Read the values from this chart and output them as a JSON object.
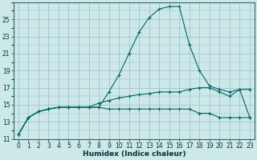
{
  "xlabel": "Humidex (Indice chaleur)",
  "bg_color": "#cce8e8",
  "grid_color": "#99bbcc",
  "line_color": "#006666",
  "x": [
    0,
    1,
    2,
    3,
    4,
    5,
    6,
    7,
    8,
    9,
    10,
    11,
    12,
    13,
    14,
    15,
    16,
    17,
    18,
    19,
    20,
    21,
    22,
    23
  ],
  "y_max": [
    11.5,
    13.5,
    14.2,
    14.5,
    14.7,
    14.7,
    14.7,
    14.7,
    14.7,
    16.5,
    18.5,
    21.0,
    23.5,
    25.2,
    26.2,
    26.5,
    26.5,
    22.0,
    19.0,
    17.2,
    16.8,
    16.5,
    16.8,
    13.5
  ],
  "y_mid": [
    11.5,
    13.5,
    14.2,
    14.5,
    14.7,
    14.7,
    14.7,
    14.7,
    15.2,
    15.5,
    15.8,
    16.0,
    16.2,
    16.3,
    16.5,
    16.5,
    16.5,
    16.8,
    17.0,
    17.0,
    16.5,
    16.0,
    16.8,
    16.8
  ],
  "y_min": [
    11.5,
    13.5,
    14.2,
    14.5,
    14.7,
    14.7,
    14.7,
    14.7,
    14.7,
    14.5,
    14.5,
    14.5,
    14.5,
    14.5,
    14.5,
    14.5,
    14.5,
    14.5,
    14.0,
    14.0,
    13.5,
    13.5,
    13.5,
    13.5
  ],
  "ylim": [
    11,
    27
  ],
  "xlim_min": -0.5,
  "xlim_max": 23.5,
  "yticks": [
    11,
    13,
    15,
    17,
    19,
    21,
    23,
    25
  ],
  "xticks": [
    0,
    1,
    2,
    3,
    4,
    5,
    6,
    7,
    8,
    9,
    10,
    11,
    12,
    13,
    14,
    15,
    16,
    17,
    18,
    19,
    20,
    21,
    22,
    23
  ],
  "tick_fontsize": 5.5,
  "xlabel_fontsize": 6.5
}
